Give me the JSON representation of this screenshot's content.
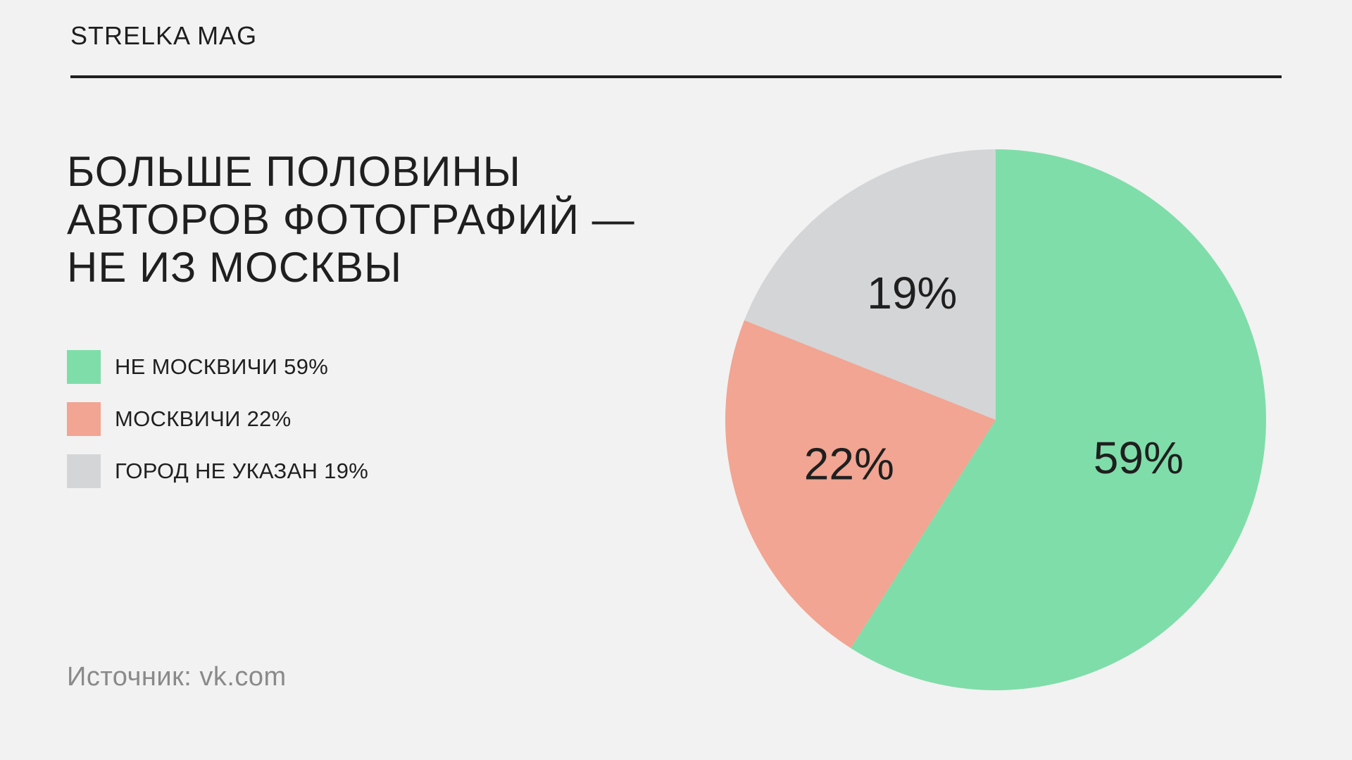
{
  "brand": "STRELKA MAG",
  "title_lines": [
    "БОЛЬШЕ ПОЛОВИНЫ",
    "АВТОРОВ ФОТОГРАФИЙ —",
    "НЕ ИЗ МОСКВЫ"
  ],
  "source": "Источник: vk.com",
  "chart_data": {
    "type": "pie",
    "title": "БОЛЬШЕ ПОЛОВИНЫ АВТОРОВ ФОТОГРАФИЙ — НЕ ИЗ МОСКВЫ",
    "legend_position": "left",
    "slices": [
      {
        "label": "НЕ МОСКВИЧИ 59%",
        "value": 59,
        "display": "59%",
        "color": "#7fdda9"
      },
      {
        "label": "МОСКВИЧИ 22%",
        "value": 22,
        "display": "22%",
        "color": "#f1a592"
      },
      {
        "label": "ГОРОД НЕ УКАЗАН 19%",
        "value": 19,
        "display": "19%",
        "color": "#d4d5d7"
      }
    ]
  }
}
